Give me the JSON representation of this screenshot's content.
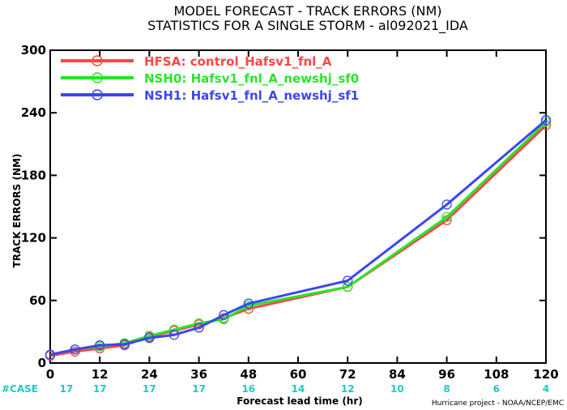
{
  "chart_data": {
    "type": "line",
    "title": "MODEL FORECAST - TRACK ERRORS (NM)",
    "subtitle": "STATISTICS FOR A SINGLE STORM - al092021_IDA",
    "xlabel": "Forecast lead time (hr)",
    "ylabel": "TRACK ERRORS (NM)",
    "xlim": [
      0,
      120
    ],
    "ylim": [
      0,
      300
    ],
    "x_ticks": [
      "0",
      "12",
      "24",
      "36",
      "48",
      "60",
      "72",
      "84",
      "96",
      "108",
      "120"
    ],
    "y_ticks": [
      "0",
      "60",
      "120",
      "180",
      "240",
      "300"
    ],
    "y_tick_values": [
      0,
      60,
      120,
      180,
      240,
      300
    ],
    "x_tick_values": [
      0,
      12,
      24,
      36,
      48,
      60,
      72,
      84,
      96,
      108,
      120
    ],
    "case_label": "#CASE",
    "case_counts": [
      "17",
      "17",
      "17",
      "17",
      "16",
      "14",
      "12",
      "10",
      "8",
      "6",
      "4"
    ],
    "legend_position": "top-left",
    "grid": false,
    "series": [
      {
        "name": "HFSA: control_Hafsv1_fnl_A",
        "color": "#ff4646",
        "x": [
          0,
          6,
          12,
          18,
          24,
          30,
          36,
          42,
          48,
          72,
          96,
          120
        ],
        "y": [
          7,
          11,
          14,
          17,
          25,
          31,
          37,
          43,
          52,
          73,
          137,
          228
        ]
      },
      {
        "name": "NSH0: Hafsv1_fnl_A_newshj_sf0",
        "color": "#28e628",
        "x": [
          0,
          6,
          12,
          18,
          24,
          30,
          36,
          42,
          48,
          72,
          96,
          120
        ],
        "y": [
          8,
          13,
          16,
          19,
          26,
          32,
          38,
          42,
          55,
          73,
          140,
          231
        ]
      },
      {
        "name": "NSH1: Hafsv1_fnl_A_newshj_sf1",
        "color": "#3c46f0",
        "x": [
          0,
          6,
          12,
          18,
          24,
          30,
          36,
          42,
          48,
          72,
          96,
          120
        ],
        "y": [
          8,
          13,
          17,
          18,
          24,
          27,
          34,
          46,
          57,
          79,
          152,
          233
        ]
      }
    ],
    "credit": "Hurricane project - NOAA/NCEP/EMC"
  }
}
